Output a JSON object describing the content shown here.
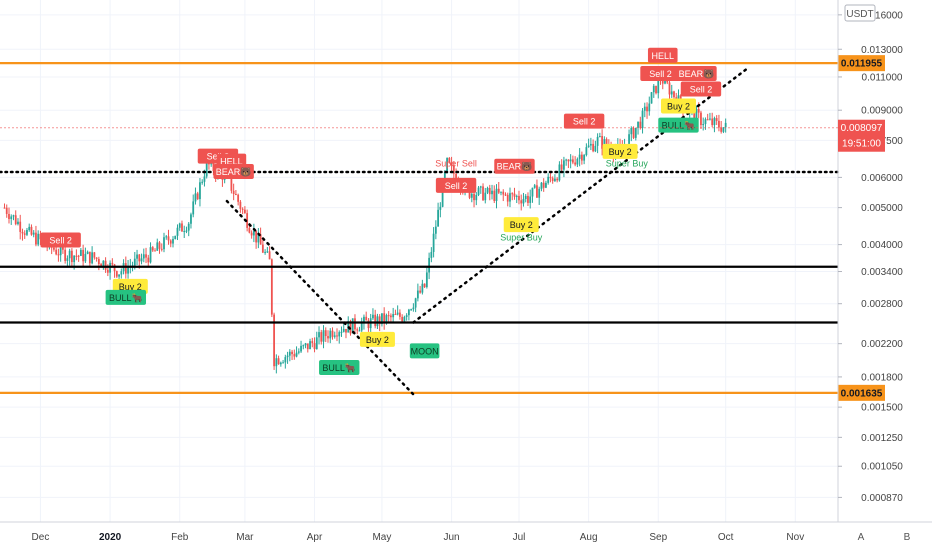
{
  "chart_data": {
    "type": "candlestick",
    "quote_currency": "USDT",
    "y_scale": "log",
    "ylim": [
      0.00075,
      0.0175
    ],
    "y_ticks": [
      "0.016000",
      "0.013000",
      "0.011000",
      "0.009000",
      "0.007500",
      "0.006000",
      "0.005000",
      "0.004000",
      "0.003400",
      "0.002800",
      "0.002200",
      "0.001800",
      "0.001500",
      "0.001250",
      "0.001050",
      "0.000870"
    ],
    "y_tick_values": [
      0.016,
      0.013,
      0.011,
      0.009,
      0.0075,
      0.006,
      0.005,
      0.004,
      0.0034,
      0.0028,
      0.0022,
      0.0018,
      0.0015,
      0.00125,
      0.00105,
      0.00087
    ],
    "x_labels": [
      {
        "label": "Dec",
        "date": "2019-12-01",
        "bold": false
      },
      {
        "label": "2020",
        "date": "2020-01-01",
        "bold": true
      },
      {
        "label": "Feb",
        "date": "2020-02-01",
        "bold": false
      },
      {
        "label": "Mar",
        "date": "2020-03-01",
        "bold": false
      },
      {
        "label": "Apr",
        "date": "2020-04-01",
        "bold": false
      },
      {
        "label": "May",
        "date": "2020-05-01",
        "bold": false
      },
      {
        "label": "Jun",
        "date": "2020-06-01",
        "bold": false
      },
      {
        "label": "Jul",
        "date": "2020-07-01",
        "bold": false
      },
      {
        "label": "Aug",
        "date": "2020-08-01",
        "bold": false
      },
      {
        "label": "Sep",
        "date": "2020-09-01",
        "bold": false
      },
      {
        "label": "Oct",
        "date": "2020-10-01",
        "bold": false
      },
      {
        "label": "Nov",
        "date": "2020-11-01",
        "bold": false
      }
    ],
    "x_range": [
      "2019-11-13",
      "2020-11-20"
    ],
    "price_path": [
      {
        "date": "2019-11-15",
        "price": 0.005
      },
      {
        "date": "2019-11-25",
        "price": 0.0043
      },
      {
        "date": "2019-12-10",
        "price": 0.0038
      },
      {
        "date": "2019-12-25",
        "price": 0.0037
      },
      {
        "date": "2020-01-05",
        "price": 0.0034
      },
      {
        "date": "2020-01-20",
        "price": 0.0038
      },
      {
        "date": "2020-02-05",
        "price": 0.0046
      },
      {
        "date": "2020-02-13",
        "price": 0.0065
      },
      {
        "date": "2020-02-22",
        "price": 0.006
      },
      {
        "date": "2020-03-03",
        "price": 0.0045
      },
      {
        "date": "2020-03-12",
        "price": 0.0036
      },
      {
        "date": "2020-03-14",
        "price": 0.002
      },
      {
        "date": "2020-03-25",
        "price": 0.0021
      },
      {
        "date": "2020-04-10",
        "price": 0.0024
      },
      {
        "date": "2020-04-25",
        "price": 0.0025
      },
      {
        "date": "2020-05-10",
        "price": 0.0026
      },
      {
        "date": "2020-05-20",
        "price": 0.0031
      },
      {
        "date": "2020-05-25",
        "price": 0.0045
      },
      {
        "date": "2020-05-30",
        "price": 0.0065
      },
      {
        "date": "2020-06-08",
        "price": 0.0055
      },
      {
        "date": "2020-06-20",
        "price": 0.0054
      },
      {
        "date": "2020-07-05",
        "price": 0.0053
      },
      {
        "date": "2020-07-20",
        "price": 0.0063
      },
      {
        "date": "2020-08-05",
        "price": 0.0075
      },
      {
        "date": "2020-08-15",
        "price": 0.007
      },
      {
        "date": "2020-08-25",
        "price": 0.0086
      },
      {
        "date": "2020-09-02",
        "price": 0.011
      },
      {
        "date": "2020-09-10",
        "price": 0.0095
      },
      {
        "date": "2020-09-20",
        "price": 0.0085
      },
      {
        "date": "2020-10-01",
        "price": 0.008097
      }
    ],
    "horizontal_levels": [
      {
        "price": 0.011955,
        "label": "0.011955",
        "color": "#f7931a",
        "style": "solid"
      },
      {
        "price": 0.001635,
        "label": "0.001635",
        "color": "#f7931a",
        "style": "solid"
      },
      {
        "price": 0.0035,
        "color": "#000000",
        "style": "solid"
      },
      {
        "price": 0.0025,
        "color": "#000000",
        "style": "solid"
      },
      {
        "price": 0.0062,
        "color": "#000000",
        "style": "dotted"
      }
    ],
    "trend_lines": [
      {
        "from": {
          "date": "2020-02-22",
          "price": 0.0052
        },
        "to": {
          "date": "2020-05-15",
          "price": 0.00162
        },
        "style": "dotted"
      },
      {
        "from": {
          "date": "2020-05-15",
          "price": 0.0025
        },
        "to": {
          "date": "2020-10-10",
          "price": 0.0115
        },
        "style": "dotted"
      }
    ],
    "current_price": {
      "value": "0.008097",
      "countdown": "19:51:00",
      "price": 0.008097,
      "color": "#ef5350"
    },
    "signals": [
      {
        "label": "Sell 2",
        "date": "2019-12-10",
        "price": 0.0041,
        "type": "sell"
      },
      {
        "label": "Buy 2",
        "date": "2020-01-10",
        "price": 0.0031,
        "type": "buy"
      },
      {
        "label": "BULL🐂",
        "date": "2020-01-08",
        "price": 0.0029,
        "type": "bull"
      },
      {
        "label": "Sell 2",
        "date": "2020-02-18",
        "price": 0.0068,
        "type": "sell"
      },
      {
        "label": "HELL",
        "date": "2020-02-24",
        "price": 0.0066,
        "type": "hell"
      },
      {
        "label": "BEAR🐻",
        "date": "2020-02-25",
        "price": 0.0062,
        "type": "bear"
      },
      {
        "label": "BULL🐂",
        "date": "2020-04-12",
        "price": 0.0019,
        "type": "bull"
      },
      {
        "label": "Buy 2",
        "date": "2020-04-29",
        "price": 0.00225,
        "type": "buy"
      },
      {
        "label": "MOON",
        "date": "2020-05-20",
        "price": 0.0021,
        "type": "moon"
      },
      {
        "label": "Super Sell",
        "date": "2020-06-03",
        "price": 0.0064,
        "type": "super-sell"
      },
      {
        "label": "Sell 2",
        "date": "2020-06-03",
        "price": 0.0057,
        "type": "sell"
      },
      {
        "label": "BEAR🐻",
        "date": "2020-06-29",
        "price": 0.0064,
        "type": "bear"
      },
      {
        "label": "Buy 2",
        "date": "2020-07-02",
        "price": 0.0045,
        "type": "buy"
      },
      {
        "label": "Super Buy",
        "date": "2020-07-02",
        "price": 0.0041,
        "type": "super-buy"
      },
      {
        "label": "Sell 2",
        "date": "2020-07-30",
        "price": 0.0084,
        "type": "sell"
      },
      {
        "label": "Buy 2",
        "date": "2020-08-15",
        "price": 0.007,
        "type": "buy"
      },
      {
        "label": "Super Buy",
        "date": "2020-08-18",
        "price": 0.0064,
        "type": "super-buy"
      },
      {
        "label": "HELL",
        "date": "2020-09-03",
        "price": 0.0125,
        "type": "hell"
      },
      {
        "label": "Sell 2",
        "date": "2020-09-02",
        "price": 0.0112,
        "type": "sell"
      },
      {
        "label": "BEAR🐻",
        "date": "2020-09-18",
        "price": 0.0112,
        "type": "bear"
      },
      {
        "label": "Sell 2",
        "date": "2020-09-20",
        "price": 0.0102,
        "type": "sell"
      },
      {
        "label": "Buy 2",
        "date": "2020-09-10",
        "price": 0.0092,
        "type": "buy"
      },
      {
        "label": "BULL🐂",
        "date": "2020-09-10",
        "price": 0.0082,
        "type": "bull"
      }
    ],
    "signal_colors": {
      "sell": "#ef5350",
      "hell": "#ef5350",
      "bear": "#ef5350",
      "buy": "#ffeb3b",
      "bull": "#26c281",
      "moon": "#26c281",
      "super-sell": "#ef5350",
      "super-buy": "#26a65b"
    },
    "candle_colors": {
      "up": "#26a69a",
      "down": "#ef5350"
    },
    "grid": true
  },
  "corner_buttons": {
    "auto": "A",
    "log": "B"
  }
}
